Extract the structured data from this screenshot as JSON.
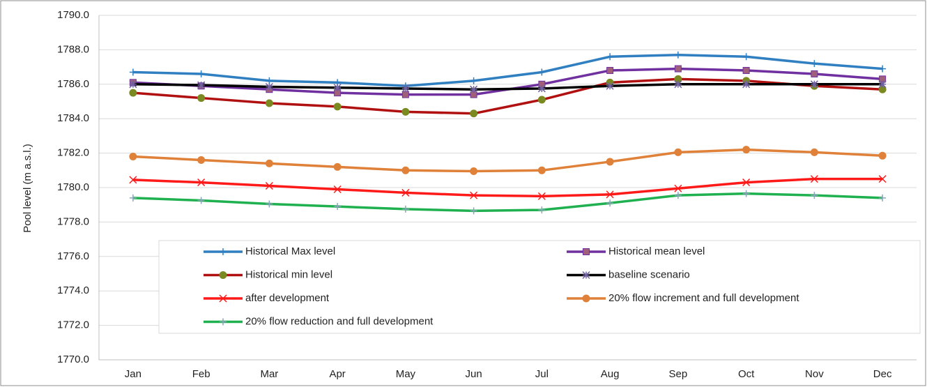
{
  "chart_data": {
    "type": "line",
    "y_label": "Pool level (m a.s.l.)",
    "categories": [
      "Jan",
      "Feb",
      "Mar",
      "Apr",
      "May",
      "Jun",
      "Jul",
      "Aug",
      "Sep",
      "Oct",
      "Nov",
      "Dec"
    ],
    "ylim": [
      1770,
      1790
    ],
    "yticks": [
      {
        "value": 1770,
        "label": "1770.0"
      },
      {
        "value": 1772,
        "label": "1772.0"
      },
      {
        "value": 1774,
        "label": "1774.0"
      },
      {
        "value": 1776,
        "label": "1776.0"
      },
      {
        "value": 1778,
        "label": "1778.0"
      },
      {
        "value": 1780,
        "label": "1780.0"
      },
      {
        "value": 1782,
        "label": "1782.0"
      },
      {
        "value": 1784,
        "label": "1784.0"
      },
      {
        "value": 1786,
        "label": "1786.0"
      },
      {
        "value": 1788,
        "label": "1788.0"
      },
      {
        "value": 1790,
        "label": "1790.0"
      }
    ],
    "grid": true,
    "series": [
      {
        "name": "Historical Max level",
        "color": "#2f7fc1",
        "marker": "plus",
        "marker_color": "#2f7fc1",
        "values": [
          1786.7,
          1786.6,
          1786.2,
          1786.1,
          1785.9,
          1786.2,
          1786.7,
          1787.6,
          1787.7,
          1787.6,
          1787.2,
          1786.9
        ]
      },
      {
        "name": "Historical mean level",
        "color": "#7030a0",
        "marker": "square",
        "marker_color": "#a0607a",
        "values": [
          1786.1,
          1785.9,
          1785.7,
          1785.5,
          1785.4,
          1785.4,
          1786.0,
          1786.8,
          1786.9,
          1786.8,
          1786.6,
          1786.3
        ]
      },
      {
        "name": "Historical min level",
        "color": "#b01010",
        "marker": "circle",
        "marker_color": "#7a8a20",
        "values": [
          1785.5,
          1785.2,
          1784.9,
          1784.7,
          1784.4,
          1784.3,
          1785.1,
          1786.1,
          1786.3,
          1786.2,
          1785.9,
          1785.7
        ]
      },
      {
        "name": "baseline scenario",
        "color": "#000000",
        "marker": "star",
        "marker_color": "#7060a0",
        "values": [
          1786.0,
          1785.95,
          1785.85,
          1785.8,
          1785.75,
          1785.7,
          1785.75,
          1785.9,
          1786.0,
          1786.0,
          1786.0,
          1786.0
        ]
      },
      {
        "name": "after development",
        "color": "#ff1a1a",
        "marker": "x",
        "marker_color": "#ff1a1a",
        "values": [
          1780.45,
          1780.3,
          1780.1,
          1779.9,
          1779.7,
          1779.55,
          1779.5,
          1779.6,
          1779.95,
          1780.3,
          1780.5,
          1780.5
        ]
      },
      {
        "name": "20% flow increment and full development",
        "color": "#e0813a",
        "marker": "circle",
        "marker_color": "#e0813a",
        "values": [
          1781.8,
          1781.6,
          1781.4,
          1781.2,
          1781.0,
          1780.95,
          1781.0,
          1781.5,
          1782.05,
          1782.2,
          1782.05,
          1781.85
        ]
      },
      {
        "name": "20% flow reduction and full development",
        "color": "#1fb050",
        "marker": "plus",
        "marker_color": "#8aa4bc",
        "values": [
          1779.4,
          1779.25,
          1779.05,
          1778.9,
          1778.75,
          1778.65,
          1778.7,
          1779.1,
          1779.55,
          1779.65,
          1779.55,
          1779.4
        ]
      }
    ]
  }
}
